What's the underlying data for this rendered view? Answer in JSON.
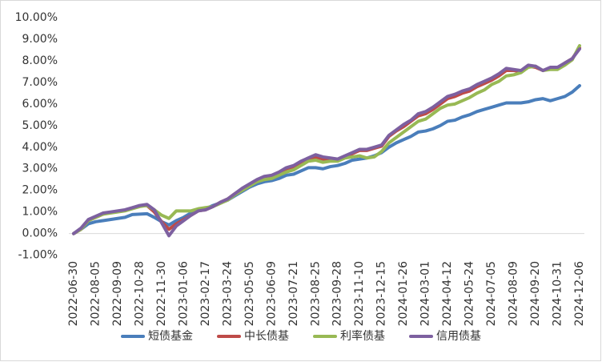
{
  "chart_data": {
    "type": "line",
    "categories": [
      "2022-06-30",
      null,
      null,
      "2022-08-05",
      null,
      null,
      "2022-09-09",
      null,
      null,
      "2022-10-28",
      null,
      null,
      "2022-11-30",
      null,
      null,
      "2023-01-06",
      null,
      null,
      "2023-02-17",
      null,
      null,
      "2023-03-24",
      null,
      null,
      "2023-05-05",
      null,
      null,
      "2023-06-09",
      null,
      null,
      "2023-07-21",
      null,
      null,
      "2023-08-25",
      null,
      null,
      "2023-09-28",
      null,
      null,
      "2023-11-10",
      null,
      null,
      "2023-12-15",
      null,
      null,
      "2024-01-26",
      null,
      null,
      "2024-03-01",
      null,
      null,
      "2024-04-12",
      null,
      null,
      "2024-05-24",
      null,
      null,
      "2024-07-05",
      null,
      null,
      "2024-08-09",
      null,
      null,
      "2024-09-20",
      null,
      null,
      "2024-10-31",
      null,
      null,
      "2024-12-06"
    ],
    "series": [
      {
        "name": "短债基金",
        "color": "#4a7ebb",
        "values": [
          0,
          0.2,
          0.45,
          0.55,
          0.6,
          0.65,
          0.7,
          0.75,
          0.88,
          0.9,
          0.92,
          0.75,
          0.55,
          0.4,
          0.6,
          0.75,
          0.95,
          1.1,
          1.15,
          1.3,
          1.42,
          1.55,
          1.75,
          1.95,
          2.15,
          2.3,
          2.4,
          2.45,
          2.55,
          2.7,
          2.75,
          2.9,
          3.05,
          3.05,
          3.0,
          3.1,
          3.15,
          3.25,
          3.4,
          3.45,
          3.5,
          3.6,
          3.75,
          4.0,
          4.2,
          4.35,
          4.5,
          4.7,
          4.75,
          4.85,
          5.0,
          5.2,
          5.25,
          5.4,
          5.5,
          5.65,
          5.75,
          5.85,
          5.95,
          6.05,
          6.05,
          6.05,
          6.1,
          6.2,
          6.25,
          6.15,
          6.25,
          6.35,
          6.55,
          6.85
        ]
      },
      {
        "name": "中长债基",
        "color": "#be4b48",
        "values": [
          0,
          0.2,
          0.6,
          0.75,
          0.9,
          0.98,
          1.02,
          1.08,
          1.18,
          1.28,
          1.3,
          1.0,
          0.55,
          0.2,
          0.45,
          0.65,
          0.85,
          1.05,
          1.1,
          1.25,
          1.45,
          1.6,
          1.85,
          2.08,
          2.25,
          2.45,
          2.6,
          2.65,
          2.8,
          3.0,
          3.1,
          3.3,
          3.45,
          3.55,
          3.45,
          3.4,
          3.4,
          3.55,
          3.7,
          3.85,
          3.85,
          3.95,
          4.05,
          4.5,
          4.75,
          4.95,
          5.2,
          5.45,
          5.55,
          5.75,
          6.0,
          6.25,
          6.35,
          6.5,
          6.6,
          6.8,
          6.95,
          7.1,
          7.3,
          7.55,
          7.55,
          7.5,
          7.75,
          7.7,
          7.55,
          7.65,
          7.65,
          7.9,
          8.1,
          8.6
        ]
      },
      {
        "name": "利率债基",
        "color": "#98b954",
        "values": [
          0,
          0.2,
          0.6,
          0.75,
          0.9,
          0.95,
          1.0,
          1.05,
          1.15,
          1.25,
          1.3,
          1.1,
          0.85,
          0.7,
          1.05,
          1.05,
          1.05,
          1.15,
          1.2,
          1.25,
          1.4,
          1.55,
          1.8,
          2.0,
          2.2,
          2.4,
          2.5,
          2.55,
          2.7,
          2.85,
          2.95,
          3.15,
          3.35,
          3.4,
          3.3,
          3.35,
          3.35,
          3.5,
          3.55,
          3.6,
          3.5,
          3.55,
          3.8,
          4.2,
          4.45,
          4.7,
          4.95,
          5.2,
          5.3,
          5.55,
          5.8,
          5.95,
          6.0,
          6.15,
          6.3,
          6.5,
          6.65,
          6.9,
          7.05,
          7.3,
          7.35,
          7.45,
          7.7,
          7.75,
          7.55,
          7.6,
          7.6,
          7.8,
          8.05,
          8.7
        ]
      },
      {
        "name": "信用债基",
        "color": "#7d60a0",
        "values": [
          0,
          0.25,
          0.65,
          0.8,
          0.95,
          1.0,
          1.05,
          1.1,
          1.2,
          1.3,
          1.35,
          1.1,
          0.5,
          -0.1,
          0.35,
          0.6,
          0.85,
          1.05,
          1.1,
          1.25,
          1.45,
          1.6,
          1.85,
          2.1,
          2.3,
          2.5,
          2.65,
          2.7,
          2.85,
          3.05,
          3.15,
          3.35,
          3.5,
          3.65,
          3.55,
          3.5,
          3.45,
          3.6,
          3.75,
          3.9,
          3.9,
          4.0,
          4.1,
          4.55,
          4.8,
          5.05,
          5.25,
          5.55,
          5.65,
          5.85,
          6.1,
          6.35,
          6.45,
          6.6,
          6.7,
          6.9,
          7.05,
          7.2,
          7.4,
          7.65,
          7.6,
          7.55,
          7.8,
          7.75,
          7.55,
          7.7,
          7.7,
          7.9,
          8.1,
          8.55
        ]
      }
    ],
    "ylim": [
      -1,
      10
    ],
    "yticks": [
      {
        "value": -1,
        "label": "-1.00%"
      },
      {
        "value": 0,
        "label": "0.00%"
      },
      {
        "value": 1,
        "label": "1.00%"
      },
      {
        "value": 2,
        "label": "2.00%"
      },
      {
        "value": 3,
        "label": "3.00%"
      },
      {
        "value": 4,
        "label": "4.00%"
      },
      {
        "value": 5,
        "label": "5.00%"
      },
      {
        "value": 6,
        "label": "6.00%"
      },
      {
        "value": 7,
        "label": "7.00%"
      },
      {
        "value": 8,
        "label": "8.00%"
      },
      {
        "value": 9,
        "label": "9.00%"
      },
      {
        "value": 10,
        "label": "10.00%"
      }
    ],
    "grid": false,
    "legend": "bottom"
  }
}
